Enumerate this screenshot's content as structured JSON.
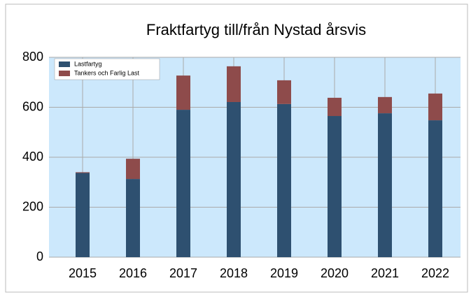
{
  "chart_data": {
    "type": "stacked_bar",
    "title": "Fraktfartyg till/från Nystad årsvis",
    "categories": [
      "2015",
      "2016",
      "2017",
      "2018",
      "2019",
      "2020",
      "2021",
      "2022"
    ],
    "series": [
      {
        "name": "Lastfartyg",
        "color": "#2e5070",
        "values": [
          337,
          313,
          590,
          621,
          613,
          565,
          576,
          548
        ]
      },
      {
        "name": "Tankers och Farlig Last",
        "color": "#8e4b4b",
        "values": [
          3,
          81,
          137,
          143,
          95,
          73,
          65,
          107
        ]
      }
    ],
    "ylim": [
      0,
      800
    ],
    "yticks": [
      0,
      200,
      400,
      600,
      800
    ],
    "grid": true,
    "legend": "top-left"
  }
}
